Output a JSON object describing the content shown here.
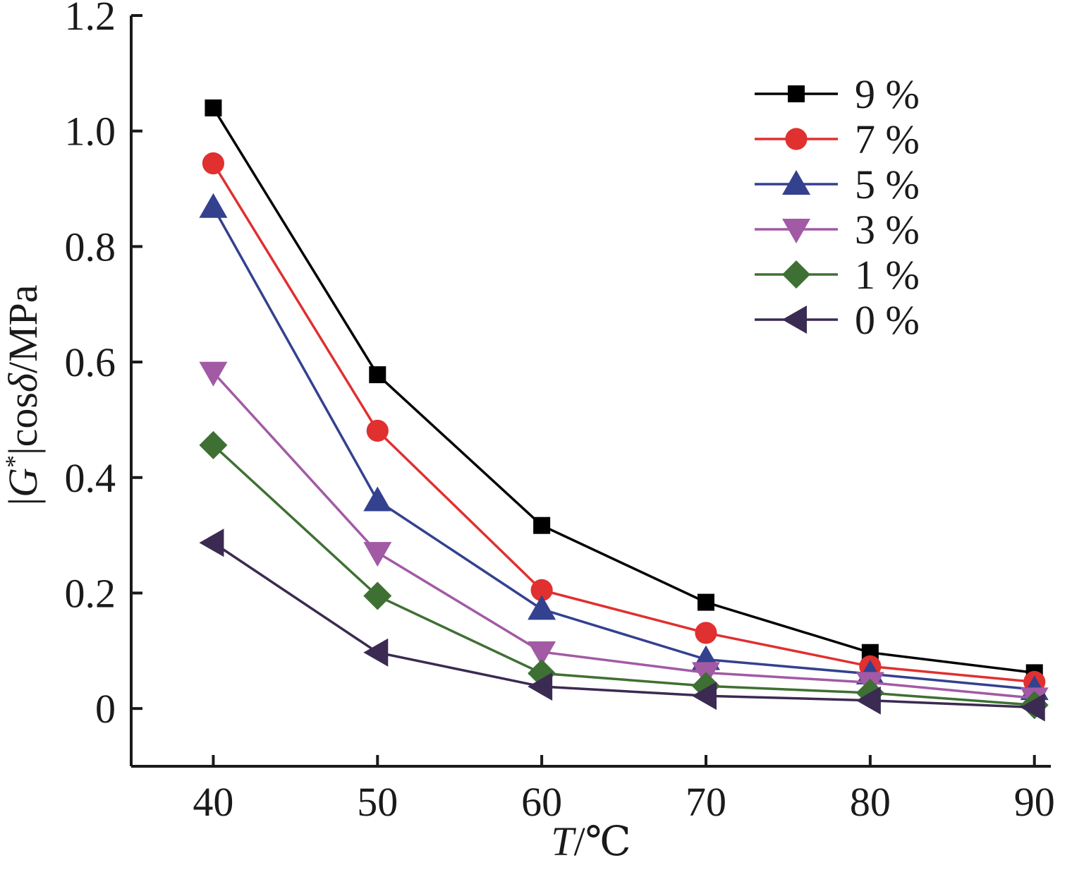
{
  "chart_data": {
    "type": "line",
    "title": "",
    "xlabel": {
      "italic": "T",
      "rest": "/℃"
    },
    "ylabel": {
      "prefix": "|",
      "italic1": "G",
      "sup": "*",
      "mid": "|cos",
      "italic2": "δ",
      "rest": "/MPa"
    },
    "x": [
      40,
      50,
      60,
      70,
      80,
      90
    ],
    "xticks": [
      "40",
      "50",
      "60",
      "70",
      "80",
      "90"
    ],
    "yticks": [
      "0",
      "0.2",
      "0.4",
      "0.6",
      "0.8",
      "1.0",
      "1.2"
    ],
    "ytick_values": [
      0,
      0.2,
      0.4,
      0.6,
      0.8,
      1.0,
      1.2
    ],
    "xlim": [
      35,
      91
    ],
    "ylim": [
      -0.1,
      1.2
    ],
    "grid": false,
    "legend_position": "top-right",
    "series": [
      {
        "name": "9 %",
        "color": "#000000",
        "marker": "square",
        "values": [
          1.04,
          0.578,
          0.317,
          0.184,
          0.097,
          0.062
        ]
      },
      {
        "name": "7 %",
        "color": "#e03030",
        "marker": "circle",
        "values": [
          0.944,
          0.481,
          0.205,
          0.131,
          0.073,
          0.046
        ]
      },
      {
        "name": "5 %",
        "color": "#33418f",
        "marker": "triangle-up",
        "values": [
          0.868,
          0.36,
          0.172,
          0.085,
          0.06,
          0.033
        ]
      },
      {
        "name": "3 %",
        "color": "#a25aa5",
        "marker": "triangle-down",
        "values": [
          0.582,
          0.27,
          0.098,
          0.062,
          0.045,
          0.018
        ]
      },
      {
        "name": "1 %",
        "color": "#3f7033",
        "marker": "diamond",
        "values": [
          0.456,
          0.195,
          0.061,
          0.039,
          0.027,
          0.006
        ]
      },
      {
        "name": "0 %",
        "color": "#3b2a52",
        "marker": "triangle-left",
        "values": [
          0.287,
          0.097,
          0.038,
          0.022,
          0.014,
          0.002
        ]
      }
    ]
  }
}
